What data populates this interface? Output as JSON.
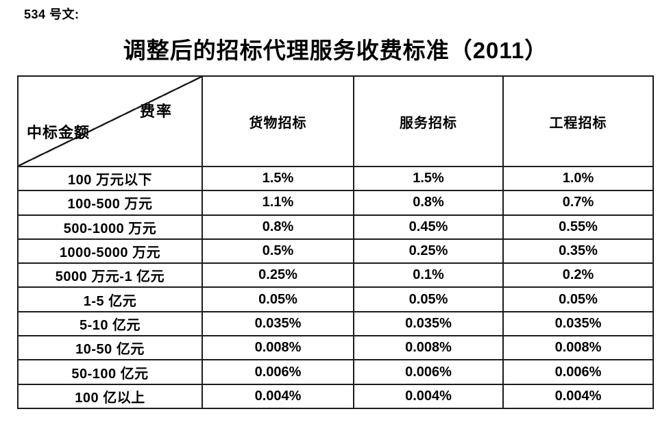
{
  "page": {
    "doc_label": "534 号文:",
    "title": "调整后的招标代理服务收费标准（2011）"
  },
  "table": {
    "corner": {
      "top_right": "费率",
      "bottom_left": "中标金额"
    },
    "columns": [
      "货物招标",
      "服务招标",
      "工程招标"
    ],
    "rows": [
      {
        "label": "100 万元以下",
        "values": [
          "1.5%",
          "1.5%",
          "1.0%"
        ]
      },
      {
        "label": "100-500 万元",
        "values": [
          "1.1%",
          "0.8%",
          "0.7%"
        ]
      },
      {
        "label": "500-1000 万元",
        "values": [
          "0.8%",
          "0.45%",
          "0.55%"
        ]
      },
      {
        "label": "1000-5000 万元",
        "values": [
          "0.5%",
          "0.25%",
          "0.35%"
        ]
      },
      {
        "label": "5000 万元-1 亿元",
        "values": [
          "0.25%",
          "0.1%",
          "0.2%"
        ]
      },
      {
        "label": "1-5 亿元",
        "values": [
          "0.05%",
          "0.05%",
          "0.05%"
        ]
      },
      {
        "label": "5-10 亿元",
        "values": [
          "0.035%",
          "0.035%",
          "0.035%"
        ]
      },
      {
        "label": "10-50 亿元",
        "values": [
          "0.008%",
          "0.008%",
          "0.008%"
        ]
      },
      {
        "label": "50-100 亿元",
        "values": [
          "0.006%",
          "0.006%",
          "0.006%"
        ]
      },
      {
        "label": "100 亿以上",
        "values": [
          "0.004%",
          "0.004%",
          "0.004%"
        ]
      }
    ]
  },
  "colors": {
    "text": "#000000",
    "border": "#1c1c1c",
    "background": "#ffffff"
  }
}
